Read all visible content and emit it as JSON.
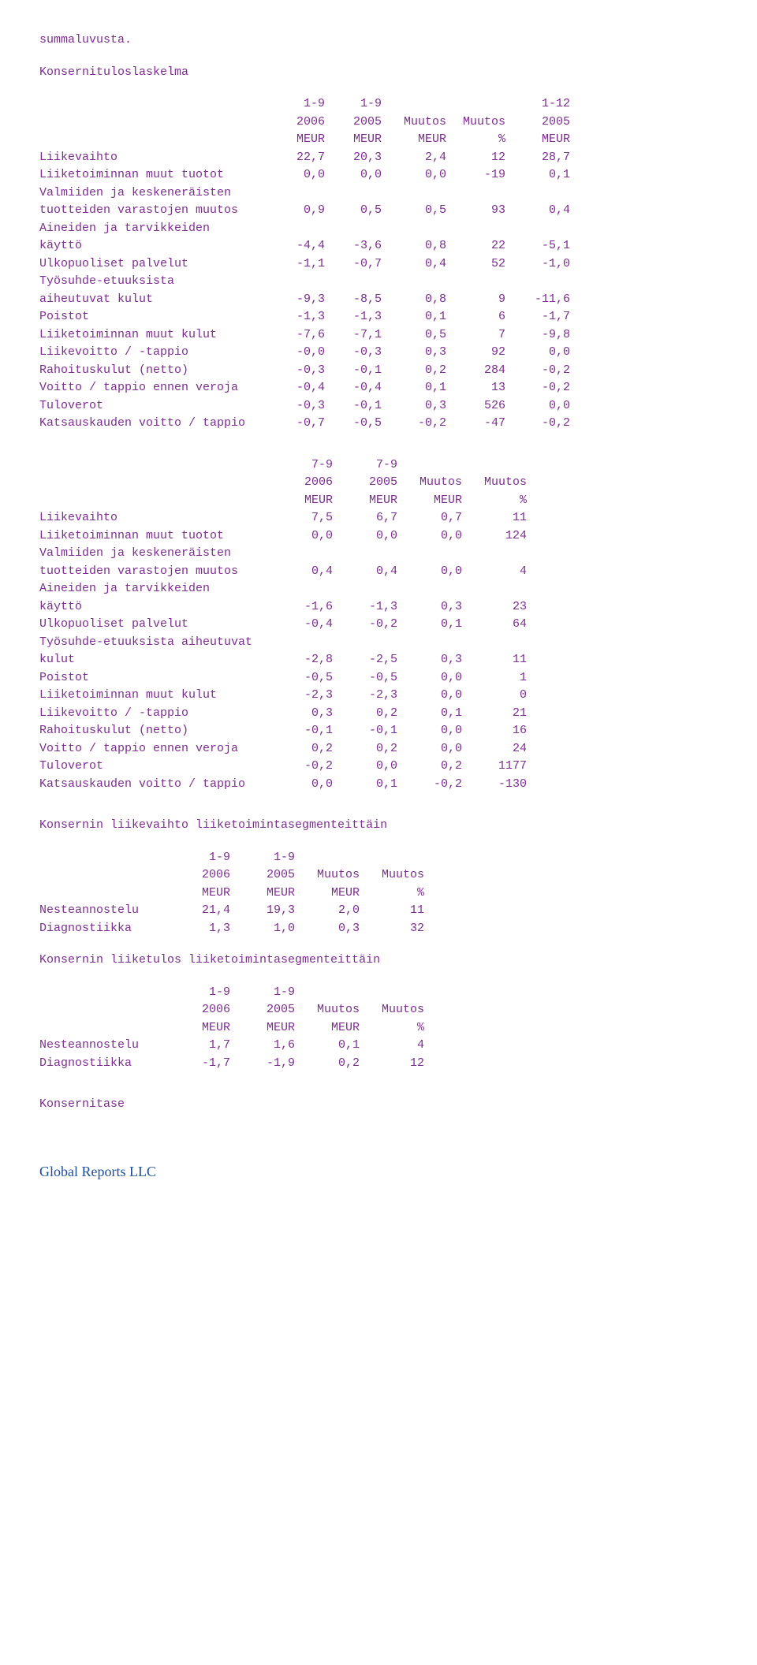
{
  "intro": {
    "line": "summaluvusta."
  },
  "t1": {
    "title": "Konsernituloslaskelma",
    "h1": "1-9",
    "h2": "1-9",
    "h3": "1-12",
    "h4": "2006",
    "h5": "2005",
    "h6": "Muutos",
    "h7": "Muutos",
    "h8": "2005",
    "u1": "MEUR",
    "u2": "MEUR",
    "u3": "MEUR",
    "u4": "%",
    "u5": "MEUR",
    "rows": [
      {
        "l": "Liikevaihto",
        "a": "22,7",
        "b": "20,3",
        "c": "2,4",
        "d": "12",
        "e": "28,7"
      },
      {
        "l": "Liiketoiminnan muut tuotot",
        "a": "0,0",
        "b": "0,0",
        "c": "0,0",
        "d": "-19",
        "e": "0,1"
      },
      {
        "l": "Valmiiden ja keskeneräisten",
        "a": "",
        "b": "",
        "c": "",
        "d": "",
        "e": ""
      },
      {
        "l": "tuotteiden varastojen muutos",
        "a": "0,9",
        "b": "0,5",
        "c": "0,5",
        "d": "93",
        "e": "0,4"
      },
      {
        "l": "Aineiden ja tarvikkeiden",
        "a": "",
        "b": "",
        "c": "",
        "d": "",
        "e": ""
      },
      {
        "l": "käyttö",
        "a": "-4,4",
        "b": "-3,6",
        "c": "0,8",
        "d": "22",
        "e": "-5,1"
      },
      {
        "l": "Ulkopuoliset palvelut",
        "a": "-1,1",
        "b": "-0,7",
        "c": "0,4",
        "d": "52",
        "e": "-1,0"
      },
      {
        "l": "Työsuhde-etuuksista",
        "a": "",
        "b": "",
        "c": "",
        "d": "",
        "e": ""
      },
      {
        "l": "aiheutuvat kulut",
        "a": "-9,3",
        "b": "-8,5",
        "c": "0,8",
        "d": "9",
        "e": "-11,6"
      },
      {
        "l": "Poistot",
        "a": "-1,3",
        "b": "-1,3",
        "c": "0,1",
        "d": "6",
        "e": "-1,7"
      },
      {
        "l": "Liiketoiminnan muut kulut",
        "a": "-7,6",
        "b": "-7,1",
        "c": "0,5",
        "d": "7",
        "e": "-9,8"
      },
      {
        "l": "Liikevoitto / -tappio",
        "a": "-0,0",
        "b": "-0,3",
        "c": "0,3",
        "d": "92",
        "e": "0,0"
      },
      {
        "l": "Rahoituskulut (netto)",
        "a": "-0,3",
        "b": "-0,1",
        "c": "0,2",
        "d": "284",
        "e": "-0,2"
      },
      {
        "l": "Voitto / tappio ennen veroja",
        "a": "-0,4",
        "b": "-0,4",
        "c": "0,1",
        "d": "13",
        "e": "-0,2"
      },
      {
        "l": "Tuloverot",
        "a": "-0,3",
        "b": "-0,1",
        "c": "0,3",
        "d": "526",
        "e": "0,0"
      },
      {
        "l": "Katsauskauden voitto / tappio",
        "a": "-0,7",
        "b": "-0,5",
        "c": "-0,2",
        "d": "-47",
        "e": "-0,2"
      }
    ]
  },
  "t2": {
    "h1": "7-9",
    "h2": "7-9",
    "h3": "2006",
    "h4": "2005",
    "h5": "Muutos",
    "h6": "Muutos",
    "u1": "MEUR",
    "u2": "MEUR",
    "u3": "MEUR",
    "u4": "%",
    "rows": [
      {
        "l": "Liikevaihto",
        "a": "7,5",
        "b": "6,7",
        "c": "0,7",
        "d": "11"
      },
      {
        "l": "Liiketoiminnan muut tuotot",
        "a": "0,0",
        "b": "0,0",
        "c": "0,0",
        "d": "124"
      },
      {
        "l": "Valmiiden ja keskeneräisten",
        "a": "",
        "b": "",
        "c": "",
        "d": ""
      },
      {
        "l": "tuotteiden varastojen muutos",
        "a": "0,4",
        "b": "0,4",
        "c": "0,0",
        "d": "4"
      },
      {
        "l": "Aineiden ja tarvikkeiden",
        "a": "",
        "b": "",
        "c": "",
        "d": ""
      },
      {
        "l": "käyttö",
        "a": "-1,6",
        "b": "-1,3",
        "c": "0,3",
        "d": "23"
      },
      {
        "l": "Ulkopuoliset palvelut",
        "a": "-0,4",
        "b": "-0,2",
        "c": "0,1",
        "d": "64"
      },
      {
        "l": "Työsuhde-etuuksista aiheutuvat",
        "a": "",
        "b": "",
        "c": "",
        "d": ""
      },
      {
        "l": "kulut",
        "a": "-2,8",
        "b": "-2,5",
        "c": "0,3",
        "d": "11"
      },
      {
        "l": "Poistot",
        "a": "-0,5",
        "b": "-0,5",
        "c": "0,0",
        "d": "1"
      },
      {
        "l": "Liiketoiminnan muut kulut",
        "a": "-2,3",
        "b": "-2,3",
        "c": "0,0",
        "d": "0"
      },
      {
        "l": "Liikevoitto / -tappio",
        "a": "0,3",
        "b": "0,2",
        "c": "0,1",
        "d": "21"
      },
      {
        "l": "Rahoituskulut (netto)",
        "a": "-0,1",
        "b": "-0,1",
        "c": "0,0",
        "d": "16"
      },
      {
        "l": "Voitto / tappio ennen veroja",
        "a": "0,2",
        "b": "0,2",
        "c": "0,0",
        "d": "24"
      },
      {
        "l": "Tuloverot",
        "a": "-0,2",
        "b": "0,0",
        "c": "0,2",
        "d": "1177"
      },
      {
        "l": "Katsauskauden voitto / tappio",
        "a": "0,0",
        "b": "0,1",
        "c": "-0,2",
        "d": "-130"
      }
    ]
  },
  "t3": {
    "title": "Konsernin liikevaihto liiketoimintasegmenteittäin",
    "h1": "1-9",
    "h2": "1-9",
    "h3": "2006",
    "h4": "2005",
    "h5": "Muutos",
    "h6": "Muutos",
    "u1": "MEUR",
    "u2": "MEUR",
    "u3": "MEUR",
    "u4": "%",
    "rows": [
      {
        "l": "Nesteannostelu",
        "a": "21,4",
        "b": "19,3",
        "c": "2,0",
        "d": "11"
      },
      {
        "l": "Diagnostiikka",
        "a": "1,3",
        "b": "1,0",
        "c": "0,3",
        "d": "32"
      }
    ]
  },
  "t4": {
    "title": "Konsernin liiketulos liiketoimintasegmenteittäin",
    "h1": "1-9",
    "h2": "1-9",
    "h3": "2006",
    "h4": "2005",
    "h5": "Muutos",
    "h6": "Muutos",
    "u1": "MEUR",
    "u2": "MEUR",
    "u3": "MEUR",
    "u4": "%",
    "rows": [
      {
        "l": "Nesteannostelu",
        "a": "1,7",
        "b": "1,6",
        "c": "0,1",
        "d": "4"
      },
      {
        "l": "Diagnostiikka",
        "a": "-1,7",
        "b": "-1,9",
        "c": "0,2",
        "d": "12"
      }
    ]
  },
  "balance": {
    "title": "Konsernitase"
  },
  "footer": {
    "text": "Global Reports LLC"
  }
}
